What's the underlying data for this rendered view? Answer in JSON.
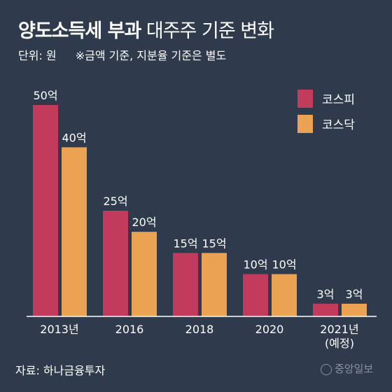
{
  "header": {
    "title_bold": "양도소득세 부과",
    "title_light": "대주주 기준 변화",
    "unit": "단위: 원",
    "note": "※금액 기준, 지분율 기준은 별도"
  },
  "footer": {
    "source": "자료: 하나금융투자",
    "logo": "중앙일보"
  },
  "colors": {
    "background": "#2f3b4c",
    "kospi": "#c23a5c",
    "kosdaq": "#eba253",
    "axis": "#ffffff"
  },
  "chart_data": {
    "type": "bar",
    "categories": [
      "2013년",
      "2016",
      "2018",
      "2020",
      "2021년\n(예정)"
    ],
    "ylim": [
      0,
      55
    ],
    "legend_position": "top-right",
    "series": [
      {
        "name": "코스피",
        "color": "#c23a5c",
        "values": [
          50,
          25,
          15,
          10,
          3
        ],
        "labels": [
          "50억",
          "25억",
          "15억",
          "10억",
          "3억"
        ]
      },
      {
        "name": "코스닥",
        "color": "#eba253",
        "values": [
          40,
          20,
          15,
          10,
          3
        ],
        "labels": [
          "40억",
          "20억",
          "15억",
          "10억",
          "3억"
        ]
      }
    ]
  }
}
